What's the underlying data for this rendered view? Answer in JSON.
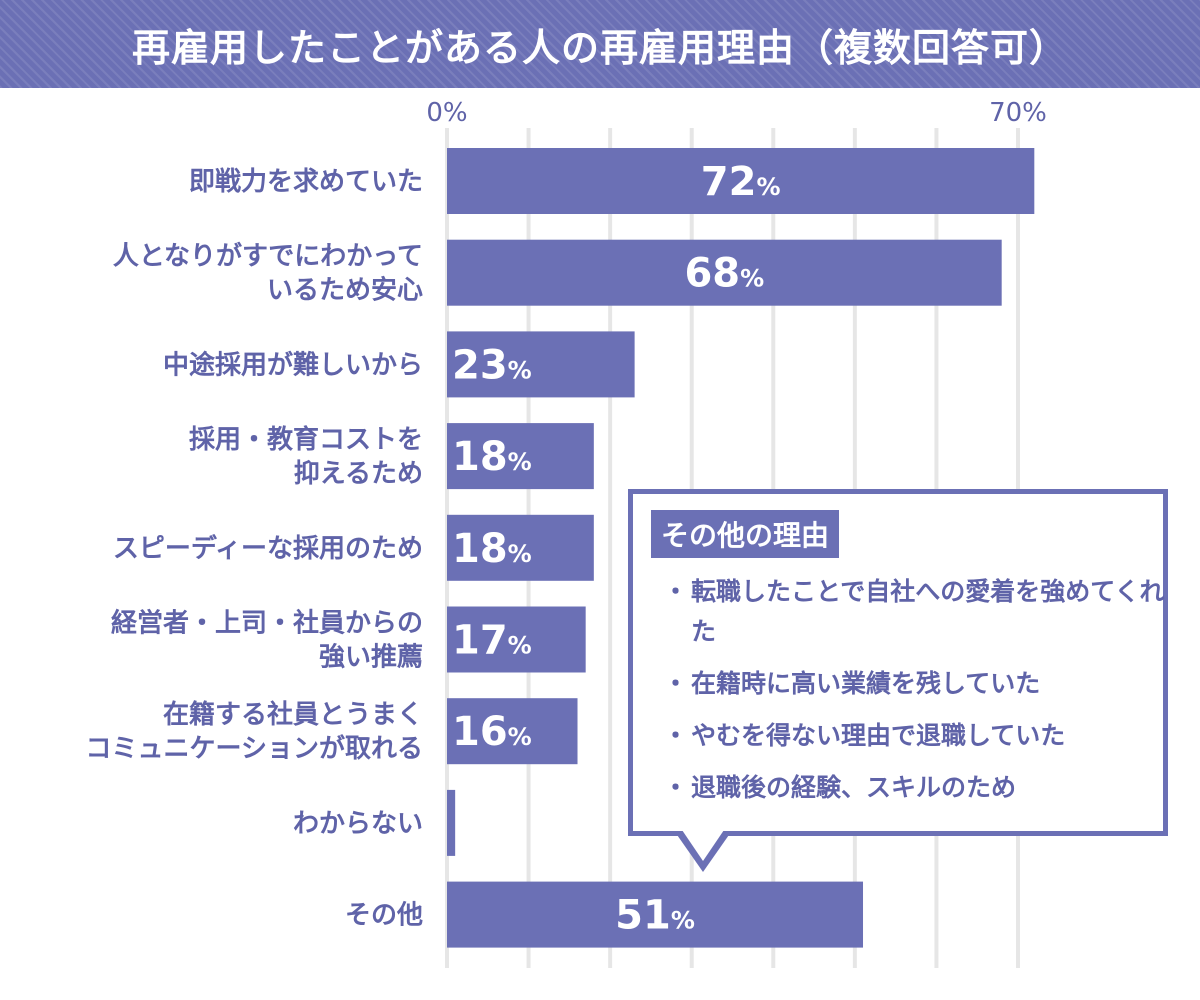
{
  "title": "再雇用したことがある人の再雇用理由（複数回答可）",
  "colors": {
    "bar": "#6b70b5",
    "label": "#5f63a8",
    "grid": "#e6e6e6"
  },
  "chart_data": {
    "type": "bar",
    "orientation": "horizontal",
    "title": "再雇用したことがある人の再雇用理由（複数回答可）",
    "categories": [
      [
        "即戦力を求めていた"
      ],
      [
        "人となりがすでにわかって",
        "いるため安心"
      ],
      [
        "中途採用が難しいから"
      ],
      [
        "採用・教育コストを",
        "抑えるため"
      ],
      [
        "スピーディーな採用のため"
      ],
      [
        "経営者・上司・社員からの",
        "強い推薦"
      ],
      [
        "在籍する社員とうまく",
        "コミュニケーションが取れる"
      ],
      [
        "わからない"
      ],
      [
        "その他"
      ]
    ],
    "values": [
      72,
      68,
      23,
      18,
      18,
      17,
      16,
      1,
      51
    ],
    "unit": "%",
    "xlim": [
      0,
      70
    ],
    "tick_labels": [
      "0%",
      "70%"
    ],
    "grid": true
  },
  "note": {
    "heading": "その他の理由",
    "bullet": "・",
    "items": [
      "転職したことで自社への愛着を強めてくれた",
      "在籍時に高い業績を残していた",
      "やむを得ない理由で退職していた",
      "退職後の経験、スキルのため"
    ]
  }
}
